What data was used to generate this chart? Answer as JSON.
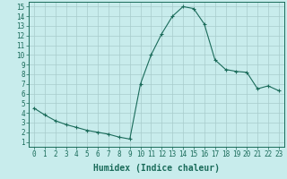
{
  "x": [
    0,
    1,
    2,
    3,
    4,
    5,
    6,
    7,
    8,
    9,
    10,
    11,
    12,
    13,
    14,
    15,
    16,
    17,
    18,
    19,
    20,
    21,
    22,
    23
  ],
  "y": [
    4.5,
    3.8,
    3.2,
    2.8,
    2.5,
    2.2,
    2.0,
    1.8,
    1.5,
    1.3,
    7.0,
    10.0,
    12.2,
    14.0,
    15.0,
    14.8,
    13.2,
    9.5,
    8.5,
    8.3,
    8.2,
    6.5,
    6.8,
    6.3
  ],
  "line_color": "#1a6b5a",
  "marker": "+",
  "marker_size": 3,
  "bg_color": "#c8ecec",
  "grid_color": "#a8cccc",
  "xlabel": "Humidex (Indice chaleur)",
  "xlim": [
    -0.5,
    23.5
  ],
  "ylim": [
    0.5,
    15.5
  ],
  "yticks": [
    1,
    2,
    3,
    4,
    5,
    6,
    7,
    8,
    9,
    10,
    11,
    12,
    13,
    14,
    15
  ],
  "xticks": [
    0,
    1,
    2,
    3,
    4,
    5,
    6,
    7,
    8,
    9,
    10,
    11,
    12,
    13,
    14,
    15,
    16,
    17,
    18,
    19,
    20,
    21,
    22,
    23
  ],
  "axis_fontsize": 6.5,
  "tick_fontsize": 5.5,
  "xlabel_fontsize": 7
}
